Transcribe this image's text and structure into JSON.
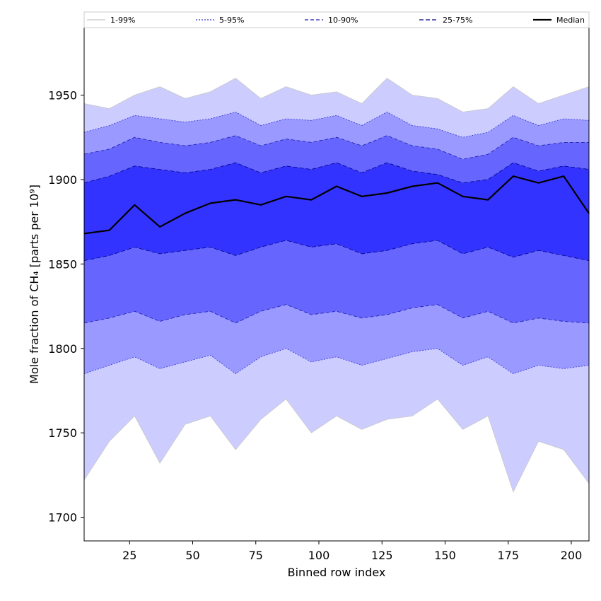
{
  "chart_data": {
    "type": "area",
    "xlabel": "Binned row index",
    "ylabel": "Mole fraction of CH₄ [parts per 10⁹]",
    "xlim": [
      7,
      207
    ],
    "ylim": [
      1686,
      1990
    ],
    "xticks": [
      25,
      50,
      75,
      100,
      125,
      150,
      175,
      200
    ],
    "yticks": [
      1700,
      1750,
      1800,
      1850,
      1900,
      1950
    ],
    "legend_position": "top",
    "x_start": 7,
    "x_step": 10,
    "bands": [
      {
        "name": "1-99%",
        "color": "#ccccff",
        "line_color": "#c8c8c8",
        "dash": "1,0",
        "lower": [
          1722,
          1745,
          1760,
          1732,
          1755,
          1760,
          1740,
          1758,
          1770,
          1750,
          1760,
          1752,
          1758,
          1760,
          1770,
          1752,
          1760,
          1715,
          1745,
          1740,
          1720
        ],
        "upper": [
          1945,
          1942,
          1950,
          1955,
          1948,
          1952,
          1960,
          1948,
          1955,
          1950,
          1952,
          1945,
          1960,
          1950,
          1948,
          1940,
          1942,
          1955,
          1945,
          1950,
          1955
        ]
      },
      {
        "name": "5-95%",
        "color": "#9999ff",
        "line_color": "#3333cc",
        "dash": "2,2",
        "lower": [
          1785,
          1790,
          1795,
          1788,
          1792,
          1796,
          1785,
          1795,
          1800,
          1792,
          1795,
          1790,
          1794,
          1798,
          1800,
          1790,
          1795,
          1785,
          1790,
          1788,
          1790
        ],
        "upper": [
          1928,
          1932,
          1938,
          1936,
          1934,
          1936,
          1940,
          1932,
          1936,
          1935,
          1938,
          1932,
          1940,
          1932,
          1930,
          1925,
          1928,
          1938,
          1932,
          1936,
          1935
        ]
      },
      {
        "name": "10-90%",
        "color": "#6666ff",
        "line_color": "#1a1aa6",
        "dash": "5,3",
        "lower": [
          1815,
          1818,
          1822,
          1816,
          1820,
          1822,
          1815,
          1822,
          1826,
          1820,
          1822,
          1818,
          1820,
          1824,
          1826,
          1818,
          1822,
          1815,
          1818,
          1816,
          1815
        ],
        "upper": [
          1915,
          1918,
          1925,
          1922,
          1920,
          1922,
          1926,
          1920,
          1924,
          1922,
          1925,
          1920,
          1926,
          1920,
          1918,
          1912,
          1915,
          1925,
          1920,
          1922,
          1922
        ]
      },
      {
        "name": "25-75%",
        "color": "#3333ff",
        "line_color": "#000080",
        "dash": "6,3",
        "lower": [
          1852,
          1855,
          1860,
          1856,
          1858,
          1860,
          1855,
          1860,
          1864,
          1860,
          1862,
          1856,
          1858,
          1862,
          1864,
          1856,
          1860,
          1854,
          1858,
          1855,
          1852
        ],
        "upper": [
          1898,
          1902,
          1908,
          1906,
          1904,
          1906,
          1910,
          1904,
          1908,
          1906,
          1910,
          1904,
          1910,
          1905,
          1903,
          1898,
          1900,
          1910,
          1905,
          1908,
          1906
        ]
      }
    ],
    "median": {
      "name": "Median",
      "color": "#000000",
      "values": [
        1868,
        1870,
        1885,
        1872,
        1880,
        1886,
        1888,
        1885,
        1890,
        1888,
        1896,
        1890,
        1892,
        1896,
        1898,
        1890,
        1888,
        1902,
        1898,
        1902,
        1880
      ]
    }
  }
}
